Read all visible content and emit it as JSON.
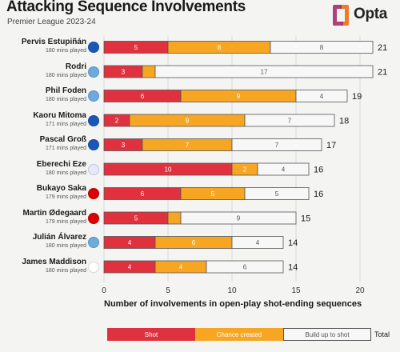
{
  "title": "Attacking Sequence Involvements",
  "subtitle": "Premier League 2023-24",
  "brand": "Opta",
  "colors": {
    "shot": "#e0313f",
    "chance": "#f6a623",
    "buildup": "#f7f7f7",
    "bar_border": "#555555",
    "segment_text_light": "#ffffff",
    "segment_text_dark": "#555555"
  },
  "chart_data": {
    "type": "bar",
    "orientation": "horizontal",
    "stacked": true,
    "xlabel": "Number of involvements in open-play shot-ending sequences",
    "xlim": [
      0,
      20
    ],
    "xticks": [
      0,
      5,
      10,
      15,
      20
    ],
    "series_names": [
      "Shot",
      "Chance created",
      "Build up to shot"
    ],
    "total_label": "Total",
    "players": [
      {
        "name": "Pervis Estupiñán",
        "minutes": "180 mins played",
        "club_icon": "brighton-badge-icon",
        "badge_color": "#1a58b8",
        "shot": 5,
        "chance": 8,
        "buildup": 8,
        "total": 21
      },
      {
        "name": "Rodri",
        "minutes": "180 mins played",
        "club_icon": "man-city-badge-icon",
        "badge_color": "#6cabdd",
        "shot": 3,
        "chance": 1,
        "buildup": 17,
        "total": 21
      },
      {
        "name": "Phil Foden",
        "minutes": "180 mins played",
        "club_icon": "man-city-badge-icon",
        "badge_color": "#6cabdd",
        "shot": 6,
        "chance": 9,
        "buildup": 4,
        "total": 19
      },
      {
        "name": "Kaoru Mitoma",
        "minutes": "171 mins played",
        "club_icon": "brighton-badge-icon",
        "badge_color": "#1a58b8",
        "shot": 2,
        "chance": 9,
        "buildup": 7,
        "total": 18
      },
      {
        "name": "Pascal Groß",
        "minutes": "171 mins played",
        "club_icon": "brighton-badge-icon",
        "badge_color": "#1a58b8",
        "shot": 3,
        "chance": 7,
        "buildup": 7,
        "total": 17
      },
      {
        "name": "Eberechi Eze",
        "minutes": "180 mins played",
        "club_icon": "crystal-palace-badge-icon",
        "badge_color": "#e8e8ff",
        "shot": 10,
        "chance": 2,
        "buildup": 4,
        "total": 16
      },
      {
        "name": "Bukayo Saka",
        "minutes": "179 mins played",
        "club_icon": "arsenal-badge-icon",
        "badge_color": "#db0007",
        "shot": 6,
        "chance": 5,
        "buildup": 5,
        "total": 16
      },
      {
        "name": "Martin Ødegaard",
        "minutes": "179 mins played",
        "club_icon": "arsenal-badge-icon",
        "badge_color": "#db0007",
        "shot": 5,
        "chance": 1,
        "buildup": 9,
        "total": 15
      },
      {
        "name": "Julián Álvarez",
        "minutes": "180 mins played",
        "club_icon": "man-city-badge-icon",
        "badge_color": "#6cabdd",
        "shot": 4,
        "chance": 6,
        "buildup": 4,
        "total": 14
      },
      {
        "name": "James Maddison",
        "minutes": "180 mins played",
        "club_icon": "tottenham-badge-icon",
        "badge_color": "#ffffff",
        "shot": 4,
        "chance": 4,
        "buildup": 6,
        "total": 14
      }
    ]
  }
}
